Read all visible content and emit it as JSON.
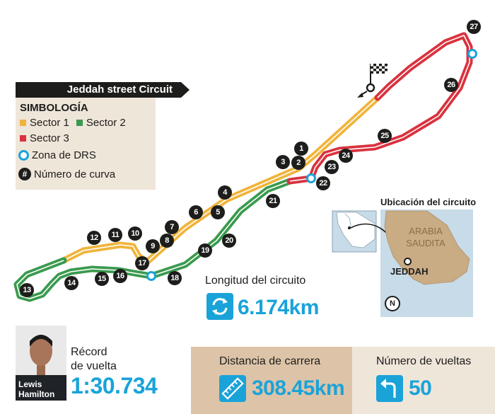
{
  "title": "Jeddah street Circuit",
  "legend": {
    "heading": "SIMBOLOGÍA",
    "sector1": "Sector 1",
    "sector2": "Sector 2",
    "sector3": "Sector 3",
    "drs": "Zona de DRS",
    "number_symbol": "#",
    "number": "Número de curva"
  },
  "colors": {
    "sector1": "#f0b43c",
    "sector2": "#3a9a4e",
    "sector3": "#d9323e",
    "accent": "#1aa3d9",
    "dark": "#1d1d1b"
  },
  "turns": [
    "1",
    "2",
    "3",
    "4",
    "5",
    "6",
    "7",
    "8",
    "9",
    "10",
    "11",
    "12",
    "13",
    "14",
    "15",
    "16",
    "17",
    "18",
    "19",
    "20",
    "21",
    "22",
    "23",
    "24",
    "25",
    "26",
    "27"
  ],
  "location": {
    "title": "Ubicación del circuito",
    "country": "ARABIA SAUDITA",
    "city": "JEDDAH",
    "compass": "N"
  },
  "length": {
    "label": "Longitud del circuito",
    "value": "6.174km",
    "icon": "loop-arrows-icon"
  },
  "record": {
    "label_line1": "Récord",
    "label_line2": "de vuelta",
    "value": "1:30.734",
    "driver_first": "Lewis",
    "driver_last": "Hamilton"
  },
  "distance": {
    "label": "Distancia de carrera",
    "value": "308.45km",
    "icon": "ruler-icon"
  },
  "laps": {
    "label": "Número de vueltas",
    "value": "50",
    "icon": "turn-arrow-icon"
  }
}
